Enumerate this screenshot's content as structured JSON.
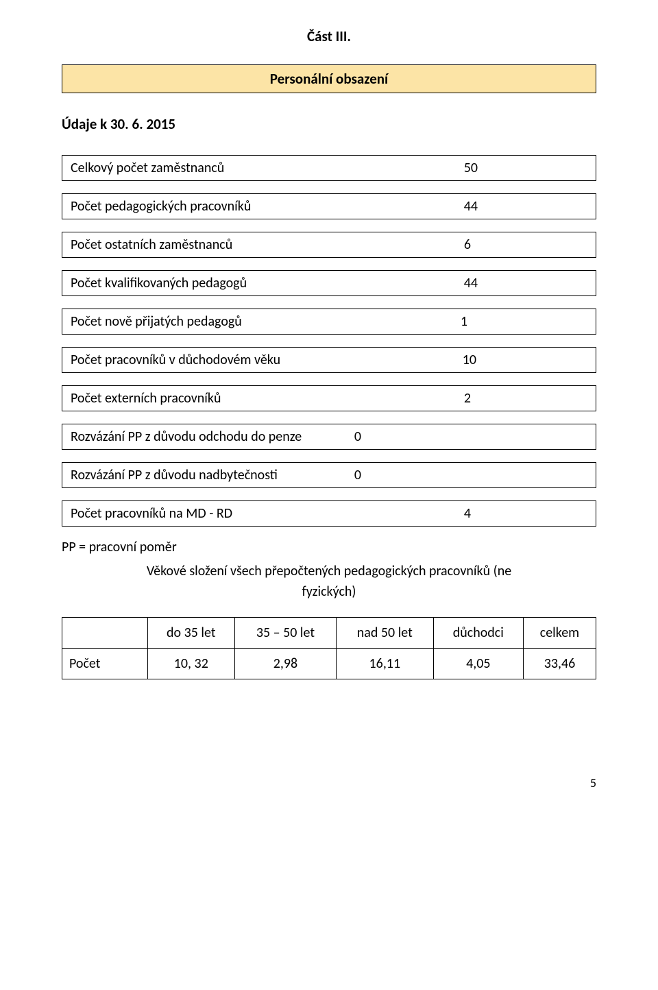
{
  "section_title": "Část III.",
  "banner_title": "Personální obsazení",
  "subheading": "Údaje k 30. 6. 2015",
  "rows": [
    {
      "label": "Celkový počet zaměstnanců",
      "value": "50"
    },
    {
      "label": "Počet pedagogických pracovníků",
      "value": "44"
    },
    {
      "label": "Počet ostatních zaměstnanců",
      "value": "6"
    },
    {
      "label": "Počet kvalifikovaných pedagogů",
      "value": "44"
    },
    {
      "label": "Počet nově přijatých pedagogů",
      "value": "1"
    },
    {
      "label": "Počet pracovníků v důchodovém věku",
      "value": "10"
    },
    {
      "label": "Počet externích pracovníků",
      "value": "2"
    },
    {
      "label": "Rozvázání PP z důvodu odchodu do penze",
      "value": "0"
    },
    {
      "label": "Rozvázání PP z důvodu nadbytečnosti",
      "value": "0"
    },
    {
      "label": "Počet pracovníků na MD - RD",
      "value": "4"
    }
  ],
  "value_paddings": [
    160,
    160,
    170,
    160,
    175,
    162,
    170,
    330,
    330,
    170
  ],
  "footnote": "PP = pracovní poměr",
  "table_caption_line1": "Věkové složení všech přepočtených pedagogických pracovníků (ne",
  "table_caption_line2": "fyzických)",
  "table": {
    "header": [
      "",
      "do 35 let",
      "35 – 50 let",
      "nad 50 let",
      "důchodci",
      "celkem"
    ],
    "row_label": "Počet",
    "row_values": [
      "10, 32",
      "2,98",
      "16,11",
      "4,05",
      "33,46"
    ]
  },
  "page_number": "5",
  "colors": {
    "banner_bg": "#fce4a6",
    "border": "#000000",
    "text": "#000000",
    "background": "#ffffff"
  }
}
